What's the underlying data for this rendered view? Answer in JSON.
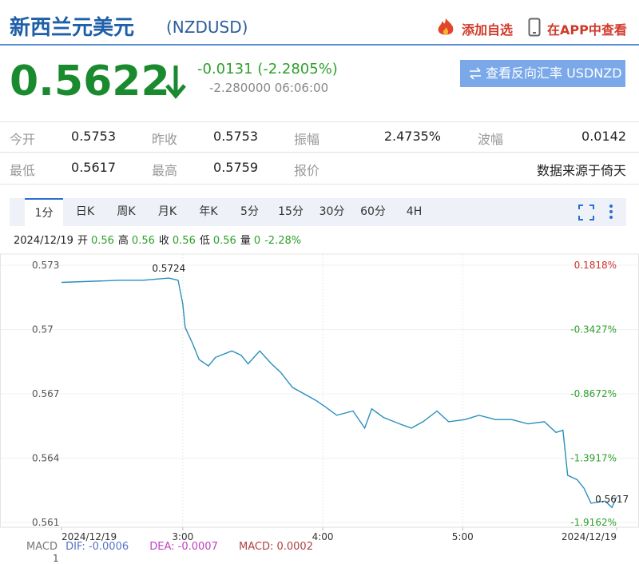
{
  "header": {
    "title": "新西兰元美元",
    "code": "(NZDUSD)",
    "add_watchlist": "添加自选",
    "open_app": "在APP中查看"
  },
  "quote": {
    "price": "0.5622",
    "change": "-0.0131 (-2.2805%)",
    "detail": "-2.280000 06:06:00",
    "reverse_button": "查看反向汇率 USDNZD"
  },
  "stats": {
    "rows": [
      [
        {
          "label": "今开",
          "value": "0.5753"
        },
        {
          "label": "昨收",
          "value": "0.5753"
        },
        {
          "label": "振幅",
          "value": "2.4735%"
        },
        {
          "label": "波幅",
          "value": "0.0142"
        }
      ],
      [
        {
          "label": "最低",
          "value": "0.5617"
        },
        {
          "label": "最高",
          "value": "0.5759"
        },
        {
          "label": "报价",
          "value": "数据来源于倚天"
        }
      ]
    ]
  },
  "tabs": {
    "items": [
      "1分",
      "日K",
      "周K",
      "月K",
      "年K",
      "5分",
      "15分",
      "30分",
      "60分",
      "4H"
    ],
    "selected": 0
  },
  "info": {
    "date": "2024/12/19",
    "items": [
      {
        "label": "开",
        "value": "0.56"
      },
      {
        "label": "高",
        "value": "0.56"
      },
      {
        "label": "收",
        "value": "0.56"
      },
      {
        "label": "低",
        "value": "0.56"
      },
      {
        "label": "量",
        "value": "0"
      }
    ],
    "change": "-2.28%"
  },
  "chart_data": {
    "type": "line",
    "x": [
      128,
      153,
      163,
      174,
      178,
      180,
      181,
      184,
      187,
      191,
      194,
      201,
      205,
      208,
      213,
      218,
      222,
      227,
      232,
      237,
      241,
      246,
      253,
      258,
      261,
      266,
      273,
      278,
      283,
      289,
      294,
      301,
      307,
      314,
      321,
      328,
      335,
      340,
      343,
      345,
      349,
      352,
      355,
      361,
      364,
      366
    ],
    "series": [
      {
        "color": "#2a8fbd",
        "values": [
          0.5722,
          0.5723,
          0.5723,
          0.5724,
          0.5723,
          0.5712,
          0.5701,
          0.5694,
          0.5686,
          0.5683,
          0.5687,
          0.569,
          0.5688,
          0.5684,
          0.569,
          0.5684,
          0.568,
          0.5673,
          0.567,
          0.5667,
          0.5664,
          0.566,
          0.5662,
          0.5654,
          0.5663,
          0.5659,
          0.5656,
          0.5654,
          0.5657,
          0.5662,
          0.5657,
          0.5658,
          0.566,
          0.5658,
          0.5658,
          0.5656,
          0.5657,
          0.5652,
          0.5653,
          0.5632,
          0.563,
          0.5626,
          0.5619,
          0.562,
          0.5617,
          0.5622
        ]
      }
    ],
    "xlim": [
      128,
      366
    ],
    "xticks": [
      {
        "value": 128,
        "label": "2024/12/19"
      },
      {
        "value": 180,
        "label": "3:00"
      },
      {
        "value": 240,
        "label": "4:00"
      },
      {
        "value": 300,
        "label": "5:00"
      },
      {
        "value": 366,
        "label": "2024/12/19"
      }
    ],
    "ylim": [
      0.561,
      0.573
    ],
    "yticks": [
      0.561,
      0.564,
      0.567,
      0.57,
      0.573
    ],
    "y2lim": [
      -1.9162,
      0.1818
    ],
    "y2ticks": [
      {
        "value": 0.1818,
        "label": "0.1818%"
      },
      {
        "value": -0.3427,
        "label": "-0.3427%"
      },
      {
        "value": -0.8672,
        "label": "-0.8672%"
      },
      {
        "value": -1.3917,
        "label": "-1.3917%"
      },
      {
        "value": -1.9162,
        "label": "-1.9162%"
      }
    ],
    "y2_up_color": "#d0302c",
    "y2_down_color": "#2ca02c",
    "grid": true,
    "annotations": [
      {
        "text": "0.5724",
        "x": 174,
        "y": 0.5724
      },
      {
        "text": "0.5617",
        "x": 364,
        "y": 0.5617
      }
    ]
  },
  "macd": {
    "label": "MACD",
    "dif": "DIF: -0.0006",
    "dea": "DEA: -0.0007",
    "macd": "MACD: 0.0002",
    "axis_label": "1"
  }
}
